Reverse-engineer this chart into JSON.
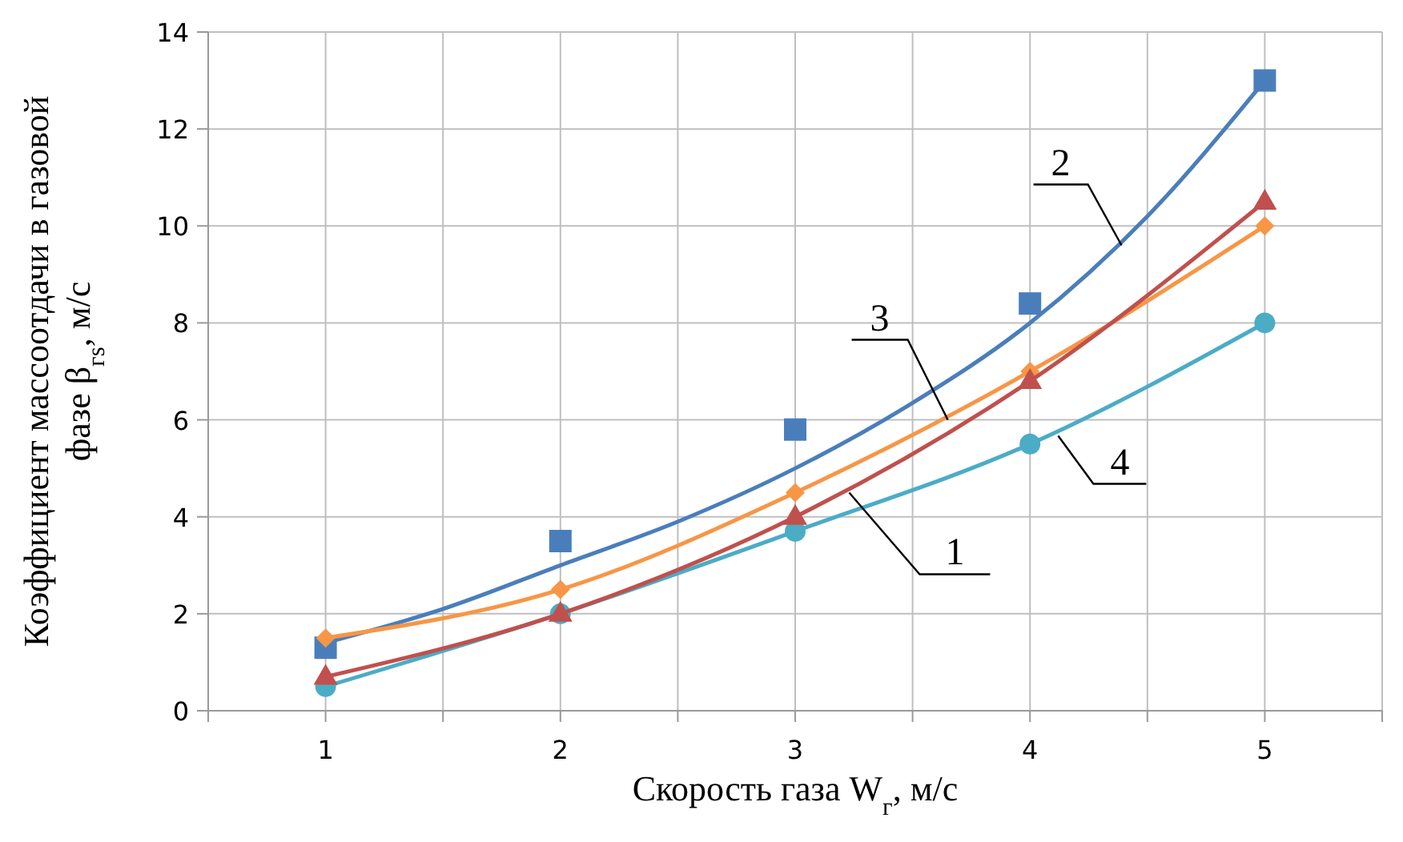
{
  "chart_data": {
    "type": "line",
    "xlabel": "Скорость газа W$_{г}$, м/с",
    "ylabel": "Коэффициент массоотдачи в газовой\nфазе  β$_{гs}$, м/с",
    "xlim": [
      0.5,
      5.5
    ],
    "xticks": [
      {
        "value": 0.5,
        "label": null
      },
      1,
      {
        "value": 1.5,
        "label": null
      },
      2,
      {
        "value": 2.5,
        "label": null
      },
      3,
      {
        "value": 3.5,
        "label": null
      },
      4,
      {
        "value": 4.5,
        "label": null
      },
      5,
      {
        "value": 5.5,
        "label": null
      }
    ],
    "ylim": [
      0,
      14
    ],
    "yticks": [
      0,
      2,
      4,
      6,
      8,
      10,
      12,
      14
    ],
    "grid": true,
    "line_style": "solid",
    "series": [
      {
        "color": "#4a7ebb",
        "marker": "none",
        "x": [
          1,
          1.5,
          2,
          2.5,
          3,
          3.5,
          4,
          4.5,
          5
        ],
        "values": [
          1.4,
          2.1,
          3.0,
          3.9,
          5.0,
          6.35,
          8.0,
          10.2,
          13.0
        ]
      },
      {
        "type": "scatter",
        "color": "#4a7ebb",
        "marker": "square",
        "x": [
          1,
          2,
          3,
          4,
          5
        ],
        "values": [
          1.3,
          3.5,
          5.8,
          8.4,
          13.0
        ]
      },
      {
        "color": "#f79646",
        "marker": "diamond",
        "x": [
          1,
          2,
          3,
          4,
          5
        ],
        "values": [
          1.5,
          2.5,
          4.5,
          7.0,
          10.0
        ]
      },
      {
        "color": "#4bacc6",
        "marker": "circle",
        "x": [
          1,
          2,
          3,
          4,
          5
        ],
        "values": [
          0.5,
          2.0,
          3.7,
          5.5,
          8.0
        ]
      },
      {
        "color": "#c0504d",
        "marker": "triangle",
        "x": [
          1,
          2,
          3,
          4,
          5
        ],
        "values": [
          0.7,
          2.0,
          4.0,
          6.8,
          10.5
        ]
      }
    ],
    "annotations": [
      {
        "text": "2",
        "x": 4.39,
        "y": 9.6
      },
      {
        "text": "3",
        "x": 3.65,
        "y": 6.0
      },
      {
        "text": "1",
        "x": 3.23,
        "y": 4.5
      },
      {
        "text": "4",
        "x": 4.12,
        "y": 5.67
      }
    ]
  }
}
